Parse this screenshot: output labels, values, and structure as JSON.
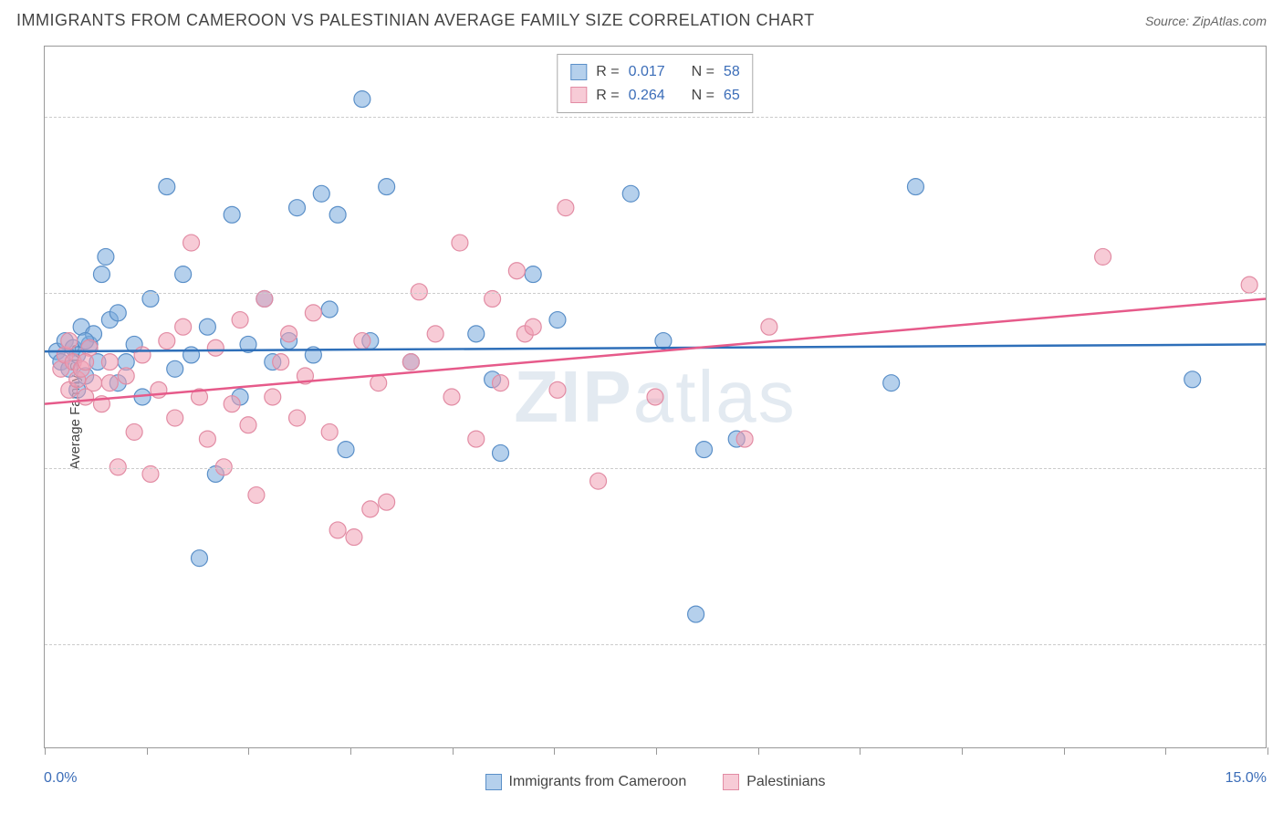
{
  "title": "IMMIGRANTS FROM CAMEROON VS PALESTINIAN AVERAGE FAMILY SIZE CORRELATION CHART",
  "source": "Source: ZipAtlas.com",
  "watermark": "ZIPatlas",
  "ylabel": "Average Family Size",
  "chart": {
    "type": "scatter",
    "xlim": [
      0,
      15
    ],
    "ylim": [
      2.2,
      4.2
    ],
    "x_tick_positions": [
      0,
      1.25,
      2.5,
      3.75,
      5,
      6.25,
      7.5,
      8.75,
      10,
      11.25,
      12.5,
      13.75,
      15
    ],
    "x_label_min": "0.0%",
    "x_label_max": "15.0%",
    "y_ticks": [
      2.5,
      3.0,
      3.5,
      4.0
    ],
    "grid_color": "#cccccc",
    "background_color": "#ffffff",
    "series": [
      {
        "name": "Immigrants from Cameroon",
        "marker_fill": "rgba(120,170,220,0.55)",
        "marker_stroke": "#5a8fc8",
        "marker_radius": 9,
        "line_color": "#2e6fb9",
        "line_width": 2.5,
        "R": "0.017",
        "N": "58",
        "trend": {
          "y_at_xmin": 3.33,
          "y_at_xmax": 3.35
        },
        "points": [
          [
            0.15,
            3.33
          ],
          [
            0.2,
            3.3
          ],
          [
            0.25,
            3.36
          ],
          [
            0.3,
            3.28
          ],
          [
            0.35,
            3.34
          ],
          [
            0.4,
            3.32
          ],
          [
            0.45,
            3.4
          ],
          [
            0.5,
            3.26
          ],
          [
            0.55,
            3.35
          ],
          [
            0.6,
            3.38
          ],
          [
            0.7,
            3.55
          ],
          [
            0.75,
            3.6
          ],
          [
            0.8,
            3.42
          ],
          [
            0.9,
            3.24
          ],
          [
            1.0,
            3.3
          ],
          [
            1.1,
            3.35
          ],
          [
            1.2,
            3.2
          ],
          [
            1.3,
            3.48
          ],
          [
            1.5,
            3.8
          ],
          [
            1.6,
            3.28
          ],
          [
            1.7,
            3.55
          ],
          [
            1.8,
            3.32
          ],
          [
            1.9,
            2.74
          ],
          [
            2.0,
            3.4
          ],
          [
            2.1,
            2.98
          ],
          [
            2.3,
            3.72
          ],
          [
            2.4,
            3.2
          ],
          [
            2.5,
            3.35
          ],
          [
            2.7,
            3.48
          ],
          [
            2.8,
            3.3
          ],
          [
            3.0,
            3.36
          ],
          [
            3.1,
            3.74
          ],
          [
            3.3,
            3.32
          ],
          [
            3.4,
            3.78
          ],
          [
            3.5,
            3.45
          ],
          [
            3.6,
            3.72
          ],
          [
            3.7,
            3.05
          ],
          [
            3.9,
            4.05
          ],
          [
            4.0,
            3.36
          ],
          [
            4.2,
            3.8
          ],
          [
            4.5,
            3.3
          ],
          [
            5.3,
            3.38
          ],
          [
            5.5,
            3.25
          ],
          [
            5.6,
            3.04
          ],
          [
            6.0,
            3.55
          ],
          [
            6.3,
            3.42
          ],
          [
            7.2,
            3.78
          ],
          [
            7.6,
            3.36
          ],
          [
            8.0,
            2.58
          ],
          [
            8.1,
            3.05
          ],
          [
            8.5,
            3.08
          ],
          [
            10.4,
            3.24
          ],
          [
            10.7,
            3.8
          ],
          [
            14.1,
            3.25
          ],
          [
            0.4,
            3.22
          ],
          [
            0.5,
            3.36
          ],
          [
            0.65,
            3.3
          ],
          [
            0.9,
            3.44
          ]
        ]
      },
      {
        "name": "Palestinians",
        "marker_fill": "rgba(240,160,180,0.55)",
        "marker_stroke": "#e28ca4",
        "marker_radius": 9,
        "line_color": "#e65a8a",
        "line_width": 2.5,
        "R": "0.264",
        "N": "65",
        "trend": {
          "y_at_xmin": 3.18,
          "y_at_xmax": 3.48
        },
        "points": [
          [
            0.2,
            3.28
          ],
          [
            0.25,
            3.32
          ],
          [
            0.3,
            3.22
          ],
          [
            0.35,
            3.3
          ],
          [
            0.4,
            3.25
          ],
          [
            0.45,
            3.28
          ],
          [
            0.5,
            3.2
          ],
          [
            0.55,
            3.34
          ],
          [
            0.6,
            3.24
          ],
          [
            0.7,
            3.18
          ],
          [
            0.8,
            3.3
          ],
          [
            0.9,
            3.0
          ],
          [
            1.0,
            3.26
          ],
          [
            1.1,
            3.1
          ],
          [
            1.2,
            3.32
          ],
          [
            1.3,
            2.98
          ],
          [
            1.4,
            3.22
          ],
          [
            1.5,
            3.36
          ],
          [
            1.6,
            3.14
          ],
          [
            1.7,
            3.4
          ],
          [
            1.8,
            3.64
          ],
          [
            1.9,
            3.2
          ],
          [
            2.0,
            3.08
          ],
          [
            2.1,
            3.34
          ],
          [
            2.2,
            3.0
          ],
          [
            2.3,
            3.18
          ],
          [
            2.4,
            3.42
          ],
          [
            2.5,
            3.12
          ],
          [
            2.6,
            2.92
          ],
          [
            2.7,
            3.48
          ],
          [
            2.8,
            3.2
          ],
          [
            2.9,
            3.3
          ],
          [
            3.0,
            3.38
          ],
          [
            3.1,
            3.14
          ],
          [
            3.2,
            3.26
          ],
          [
            3.3,
            3.44
          ],
          [
            3.5,
            3.1
          ],
          [
            3.6,
            2.82
          ],
          [
            3.8,
            2.8
          ],
          [
            3.9,
            3.36
          ],
          [
            4.0,
            2.88
          ],
          [
            4.1,
            3.24
          ],
          [
            4.2,
            2.9
          ],
          [
            4.5,
            3.3
          ],
          [
            4.6,
            3.5
          ],
          [
            4.8,
            3.38
          ],
          [
            5.0,
            3.2
          ],
          [
            5.1,
            3.64
          ],
          [
            5.3,
            3.08
          ],
          [
            5.5,
            3.48
          ],
          [
            5.6,
            3.24
          ],
          [
            5.8,
            3.56
          ],
          [
            5.9,
            3.38
          ],
          [
            6.0,
            3.4
          ],
          [
            6.3,
            3.22
          ],
          [
            6.4,
            3.74
          ],
          [
            6.8,
            2.96
          ],
          [
            7.5,
            3.2
          ],
          [
            8.6,
            3.08
          ],
          [
            8.9,
            3.4
          ],
          [
            13.0,
            3.6
          ],
          [
            14.8,
            3.52
          ],
          [
            0.3,
            3.36
          ],
          [
            0.5,
            3.3
          ],
          [
            0.8,
            3.24
          ]
        ]
      }
    ]
  },
  "legend_box": {
    "rows": [
      {
        "swatch_fill": "rgba(120,170,220,0.55)",
        "swatch_stroke": "#5a8fc8",
        "R_label": "R =",
        "R_val": "0.017",
        "N_label": "N =",
        "N_val": "58"
      },
      {
        "swatch_fill": "rgba(240,160,180,0.55)",
        "swatch_stroke": "#e28ca4",
        "R_label": "R =",
        "R_val": "0.264",
        "N_label": "N =",
        "N_val": "65"
      }
    ]
  },
  "x_legend": [
    {
      "swatch_fill": "rgba(120,170,220,0.55)",
      "swatch_stroke": "#5a8fc8",
      "label": "Immigrants from Cameroon"
    },
    {
      "swatch_fill": "rgba(240,160,180,0.55)",
      "swatch_stroke": "#e28ca4",
      "label": "Palestinians"
    }
  ]
}
